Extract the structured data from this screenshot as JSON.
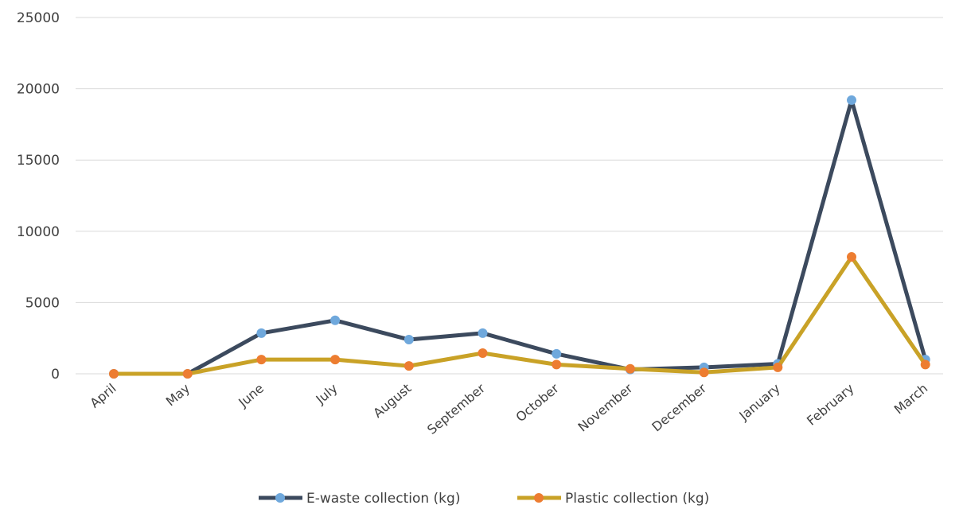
{
  "chart_data": {
    "type": "line",
    "title": "",
    "xlabel": "",
    "ylabel": "",
    "categories": [
      "April",
      "May",
      "June",
      "July",
      "August",
      "September",
      "October",
      "November",
      "December",
      "January",
      "February",
      "March"
    ],
    "y_ticks": [
      "0",
      "5000",
      "10000",
      "15000",
      "20000",
      "25000"
    ],
    "ylim": [
      0,
      25000
    ],
    "grid": true,
    "legend_position": "bottom",
    "series": [
      {
        "name": "E-waste collection (kg)",
        "line_color": "#3c4a5e",
        "marker_color": "#6fa8dc",
        "values": [
          0,
          0,
          2850,
          3750,
          2400,
          2850,
          1400,
          300,
          450,
          700,
          19200,
          1000
        ]
      },
      {
        "name": "Plastic collection (kg)",
        "line_color": "#c9a227",
        "marker_color": "#ed7d31",
        "values": [
          0,
          0,
          1000,
          1000,
          550,
          1450,
          650,
          350,
          100,
          450,
          8200,
          650
        ]
      }
    ]
  }
}
